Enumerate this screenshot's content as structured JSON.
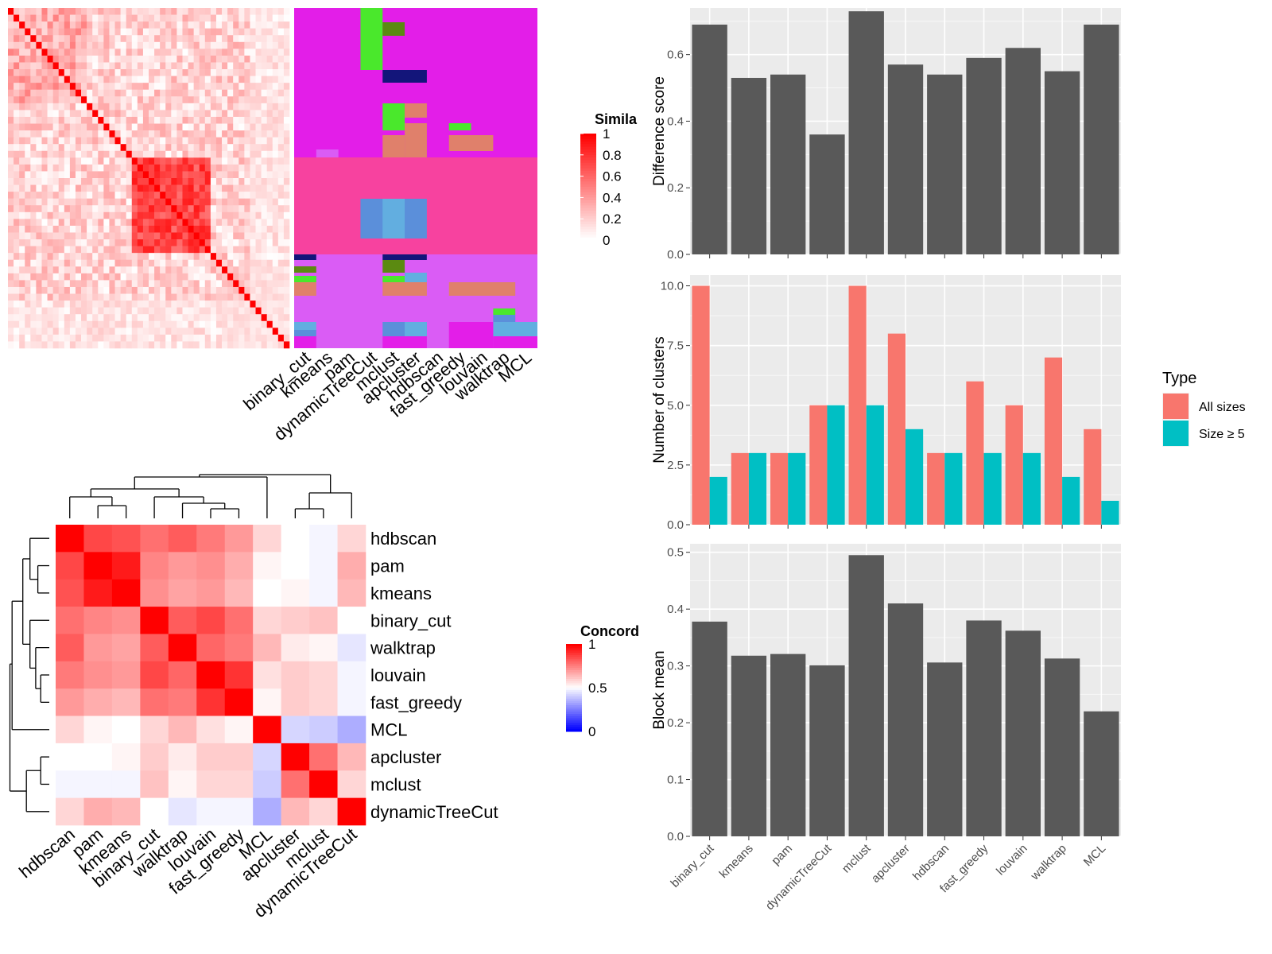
{
  "similarity_heatmap": {
    "legend_title": "Simila",
    "legend_ticks": [
      "1",
      "0.8",
      "0.6",
      "0.4",
      "0.2",
      "0"
    ],
    "colors": {
      "high": "#ff0000",
      "low": "#ffffff"
    }
  },
  "cluster_assignment_panel": {
    "method_labels": [
      "binary_cut",
      "kmeans",
      "pam",
      "dynamicTreeCut",
      "mclust",
      "apcluster",
      "hdbscan",
      "fast_greedy",
      "louvain",
      "walktrap",
      "MCL"
    ]
  },
  "chart_data": [
    {
      "type": "heatmap",
      "title": "",
      "legend_title": "Concord",
      "legend_ticks": [
        "1",
        "0.5",
        "0"
      ],
      "colors": {
        "high": "#ff0000",
        "mid": "#ffffff",
        "low": "#0000ff"
      },
      "rows": [
        "hdbscan",
        "pam",
        "kmeans",
        "binary_cut",
        "walktrap",
        "louvain",
        "fast_greedy",
        "MCL",
        "apcluster",
        "mclust",
        "dynamicTreeCut"
      ],
      "columns": [
        "hdbscan",
        "pam",
        "kmeans",
        "binary_cut",
        "walktrap",
        "louvain",
        "fast_greedy",
        "MCL",
        "apcluster",
        "mclust",
        "dynamicTreeCut"
      ],
      "values": [
        [
          1.0,
          0.86,
          0.84,
          0.78,
          0.82,
          0.76,
          0.7,
          0.58,
          0.5,
          0.48,
          0.58
        ],
        [
          0.86,
          1.0,
          0.95,
          0.74,
          0.7,
          0.72,
          0.66,
          0.52,
          0.5,
          0.48,
          0.66
        ],
        [
          0.84,
          0.95,
          1.0,
          0.72,
          0.68,
          0.7,
          0.64,
          0.5,
          0.52,
          0.48,
          0.64
        ],
        [
          0.78,
          0.74,
          0.72,
          1.0,
          0.82,
          0.86,
          0.78,
          0.58,
          0.6,
          0.62,
          0.5
        ],
        [
          0.82,
          0.7,
          0.68,
          0.82,
          1.0,
          0.8,
          0.76,
          0.64,
          0.54,
          0.52,
          0.45
        ],
        [
          0.76,
          0.72,
          0.7,
          0.86,
          0.8,
          1.0,
          0.9,
          0.56,
          0.6,
          0.58,
          0.48
        ],
        [
          0.7,
          0.66,
          0.64,
          0.78,
          0.76,
          0.9,
          1.0,
          0.52,
          0.6,
          0.58,
          0.48
        ],
        [
          0.58,
          0.52,
          0.5,
          0.58,
          0.64,
          0.56,
          0.52,
          1.0,
          0.42,
          0.4,
          0.34
        ],
        [
          0.5,
          0.5,
          0.52,
          0.6,
          0.54,
          0.6,
          0.6,
          0.42,
          1.0,
          0.78,
          0.64
        ],
        [
          0.48,
          0.48,
          0.48,
          0.62,
          0.52,
          0.58,
          0.58,
          0.4,
          0.78,
          1.0,
          0.58
        ],
        [
          0.58,
          0.66,
          0.64,
          0.5,
          0.45,
          0.48,
          0.48,
          0.34,
          0.64,
          0.58,
          1.0
        ]
      ]
    },
    {
      "type": "bar",
      "title": "",
      "xlabel": "",
      "ylabel": "Difference score",
      "categories": [
        "binary_cut",
        "kmeans",
        "pam",
        "dynamicTreeCut",
        "mclust",
        "apcluster",
        "hdbscan",
        "fast_greedy",
        "louvain",
        "walktrap",
        "MCL"
      ],
      "values": [
        0.69,
        0.53,
        0.54,
        0.36,
        0.73,
        0.57,
        0.54,
        0.59,
        0.62,
        0.55,
        0.69
      ],
      "ylim": [
        0,
        0.74
      ],
      "yticks": [
        "0.0",
        "0.2",
        "0.4",
        "0.6"
      ],
      "bar_color": "#595959",
      "grid": true
    },
    {
      "type": "bar",
      "title": "",
      "xlabel": "",
      "ylabel": "Number of clusters",
      "categories": [
        "binary_cut",
        "kmeans",
        "pam",
        "dynamicTreeCut",
        "mclust",
        "apcluster",
        "hdbscan",
        "fast_greedy",
        "louvain",
        "walktrap",
        "MCL"
      ],
      "series": [
        {
          "name": "All sizes",
          "color": "#f8766d",
          "values": [
            10,
            3,
            3,
            5,
            10,
            8,
            3,
            6,
            5,
            7,
            4
          ]
        },
        {
          "name": "Size ≥ 5",
          "color": "#00bfc4",
          "values": [
            2,
            3,
            3,
            5,
            5,
            4,
            3,
            3,
            3,
            2,
            1
          ]
        }
      ],
      "legend_title": "Type",
      "legend_position": "right",
      "ylim": [
        0,
        10.45
      ],
      "yticks": [
        "0.0",
        "2.5",
        "5.0",
        "7.5",
        "10.0"
      ],
      "grid": true
    },
    {
      "type": "bar",
      "title": "",
      "xlabel": "",
      "ylabel": "Block mean",
      "categories": [
        "binary_cut",
        "kmeans",
        "pam",
        "dynamicTreeCut",
        "mclust",
        "apcluster",
        "hdbscan",
        "fast_greedy",
        "louvain",
        "walktrap",
        "MCL"
      ],
      "values": [
        0.378,
        0.318,
        0.321,
        0.301,
        0.495,
        0.41,
        0.306,
        0.38,
        0.362,
        0.313,
        0.22
      ],
      "ylim": [
        0,
        0.515
      ],
      "yticks": [
        "0.0",
        "0.1",
        "0.2",
        "0.3",
        "0.4",
        "0.5"
      ],
      "bar_color": "#595959",
      "grid": true
    }
  ]
}
